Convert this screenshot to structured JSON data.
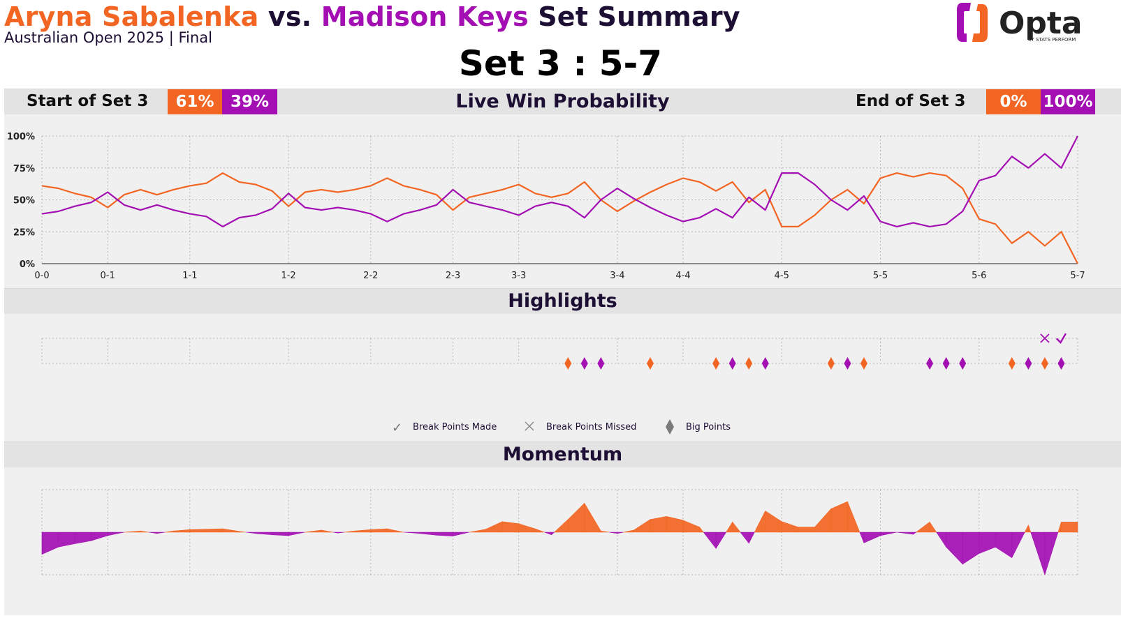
{
  "header": {
    "player1": "Aryna Sabalenka",
    "vs": " vs. ",
    "player2": "Madison Keys",
    "suffix": " Set Summary",
    "subtitle": "Australian Open 2025 | Final",
    "set_score": "Set 3 : 5-7",
    "logo_text": "Opta",
    "logo_subtext": "BY STATS PERFORM"
  },
  "colors": {
    "player1": "#f26522",
    "player2": "#a30fb3",
    "dark": "#1c0f33"
  },
  "win_prob": {
    "band_title": "Live Win Probability",
    "start_label": "Start of Set 3",
    "start_p1": "61%",
    "start_p2": "39%",
    "end_label": "End of Set 3",
    "end_p1": "0%",
    "end_p2": "100%"
  },
  "highlights": {
    "band_title": "Highlights",
    "legend": {
      "made": "Break Points Made",
      "missed": "Break Points Missed",
      "big": "Big Points"
    }
  },
  "momentum": {
    "band_title": "Momentum"
  },
  "chart_data": [
    {
      "type": "line",
      "name": "win_probability",
      "games": [
        "0-0",
        "0-1",
        "1-1",
        "1-2",
        "2-2",
        "2-3",
        "3-3",
        "3-4",
        "4-4",
        "4-5",
        "5-5",
        "5-6",
        "5-7"
      ],
      "game_point_index": [
        0,
        4,
        9,
        15,
        20,
        25,
        29,
        35,
        39,
        45,
        51,
        57,
        63
      ],
      "yticks": [
        "0%",
        "25%",
        "50%",
        "75%",
        "100%"
      ],
      "ylim": [
        0,
        100
      ],
      "series": [
        {
          "name": "Aryna Sabalenka",
          "values": [
            61,
            59,
            55,
            52,
            44,
            54,
            58,
            54,
            58,
            61,
            63,
            71,
            64,
            62,
            57,
            45,
            56,
            58,
            56,
            58,
            61,
            67,
            61,
            58,
            54,
            42,
            52,
            55,
            58,
            62,
            55,
            52,
            55,
            64,
            50,
            41,
            49,
            56,
            62,
            67,
            64,
            57,
            64,
            48,
            58,
            29,
            29,
            38,
            50,
            58,
            47,
            67,
            71,
            68,
            71,
            69,
            59,
            35,
            31,
            16,
            25,
            14,
            25,
            0
          ]
        },
        {
          "name": "Madison Keys",
          "values": [
            39,
            41,
            45,
            48,
            56,
            46,
            42,
            46,
            42,
            39,
            37,
            29,
            36,
            38,
            43,
            55,
            44,
            42,
            44,
            42,
            39,
            33,
            39,
            42,
            46,
            58,
            48,
            45,
            42,
            38,
            45,
            48,
            45,
            36,
            50,
            59,
            51,
            44,
            38,
            33,
            36,
            43,
            36,
            52,
            42,
            71,
            71,
            62,
            50,
            42,
            53,
            33,
            29,
            32,
            29,
            31,
            41,
            65,
            69,
            84,
            75,
            86,
            75,
            100
          ]
        }
      ]
    },
    {
      "type": "scatter",
      "name": "highlights",
      "big_points": [
        {
          "index": 32,
          "player": "Aryna Sabalenka"
        },
        {
          "index": 33,
          "player": "Madison Keys"
        },
        {
          "index": 34,
          "player": "Madison Keys"
        },
        {
          "index": 37,
          "player": "Aryna Sabalenka"
        },
        {
          "index": 41,
          "player": "Aryna Sabalenka"
        },
        {
          "index": 42,
          "player": "Madison Keys"
        },
        {
          "index": 43,
          "player": "Aryna Sabalenka"
        },
        {
          "index": 44,
          "player": "Madison Keys"
        },
        {
          "index": 48,
          "player": "Aryna Sabalenka"
        },
        {
          "index": 49,
          "player": "Madison Keys"
        },
        {
          "index": 50,
          "player": "Aryna Sabalenka"
        },
        {
          "index": 54,
          "player": "Madison Keys"
        },
        {
          "index": 55,
          "player": "Madison Keys"
        },
        {
          "index": 56,
          "player": "Madison Keys"
        },
        {
          "index": 59,
          "player": "Aryna Sabalenka"
        },
        {
          "index": 60,
          "player": "Madison Keys"
        },
        {
          "index": 61,
          "player": "Aryna Sabalenka"
        },
        {
          "index": 62,
          "player": "Madison Keys"
        }
      ],
      "break_points_missed": [
        {
          "index": 61,
          "player": "Madison Keys"
        }
      ],
      "break_points_made": [
        {
          "index": 62,
          "player": "Madison Keys"
        }
      ]
    },
    {
      "type": "area",
      "name": "momentum",
      "ylim": [
        -1,
        1
      ],
      "values": [
        -0.52,
        -0.35,
        -0.27,
        -0.2,
        -0.08,
        0.0,
        0.03,
        -0.03,
        0.03,
        0.06,
        0.07,
        0.08,
        0.02,
        -0.03,
        -0.06,
        -0.08,
        0.0,
        0.05,
        -0.02,
        0.03,
        0.06,
        0.08,
        0.0,
        -0.03,
        -0.07,
        -0.09,
        0.0,
        0.07,
        0.25,
        0.2,
        0.08,
        -0.06,
        0.3,
        0.68,
        0.03,
        -0.03,
        0.05,
        0.3,
        0.37,
        0.28,
        0.12,
        -0.38,
        0.24,
        -0.26,
        0.5,
        0.25,
        0.12,
        0.12,
        0.55,
        0.72,
        -0.25,
        -0.08,
        0.0,
        -0.05,
        0.24,
        -0.35,
        -0.75,
        -0.5,
        -0.35,
        -0.6,
        0.17,
        -1.0,
        0.24,
        0.24
      ]
    }
  ]
}
